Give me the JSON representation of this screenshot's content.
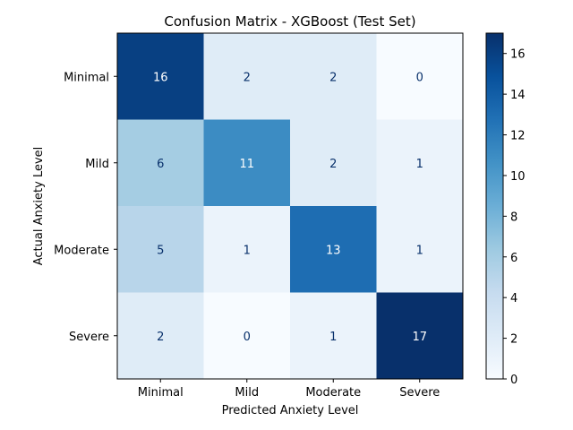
{
  "chart_data": {
    "type": "heatmap",
    "title": "Confusion Matrix - XGBoost (Test Set)",
    "xlabel": "Predicted Anxiety Level",
    "ylabel": "Actual Anxiety Level",
    "x_categories": [
      "Minimal",
      "Mild",
      "Moderate",
      "Severe"
    ],
    "y_categories": [
      "Minimal",
      "Mild",
      "Moderate",
      "Severe"
    ],
    "values": [
      [
        16,
        2,
        2,
        0
      ],
      [
        6,
        11,
        2,
        1
      ],
      [
        5,
        1,
        13,
        1
      ],
      [
        2,
        0,
        1,
        17
      ]
    ],
    "colorbar": {
      "range": [
        0,
        17
      ],
      "ticks": [
        0,
        2,
        4,
        6,
        8,
        10,
        12,
        14,
        16
      ],
      "colormap": "Blues"
    },
    "grid": false
  }
}
